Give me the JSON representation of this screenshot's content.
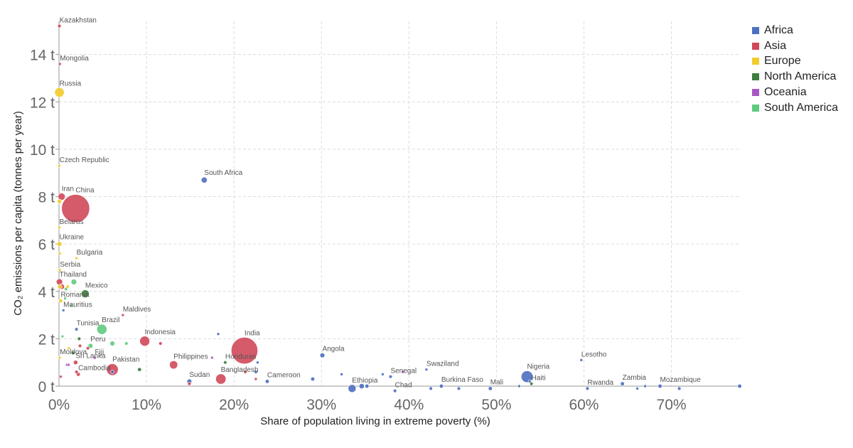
{
  "chart_data": {
    "type": "scatter",
    "xlabel": "Share of population living in extreme poverty (%)",
    "ylabel": "CO₂ emissions per capita (tonnes per year)",
    "xlim": [
      0,
      78
    ],
    "ylim": [
      0,
      15.4
    ],
    "x_ticks": [
      {
        "value": 0,
        "label": "0%"
      },
      {
        "value": 10,
        "label": "10%"
      },
      {
        "value": 20,
        "label": "20%"
      },
      {
        "value": 30,
        "label": "30%"
      },
      {
        "value": 40,
        "label": "40%"
      },
      {
        "value": 50,
        "label": "50%"
      },
      {
        "value": 60,
        "label": "60%"
      },
      {
        "value": 70,
        "label": "70%"
      }
    ],
    "y_ticks": [
      {
        "value": 0,
        "label": "0 t"
      },
      {
        "value": 2,
        "label": "2 t"
      },
      {
        "value": 4,
        "label": "4 t"
      },
      {
        "value": 6,
        "label": "6 t"
      },
      {
        "value": 8,
        "label": "8 t"
      },
      {
        "value": 10,
        "label": "10 t"
      },
      {
        "value": 12,
        "label": "12 t"
      },
      {
        "value": 14,
        "label": "14 t"
      }
    ],
    "grid": true,
    "legend_position": "right",
    "legend": [
      {
        "name": "Africa",
        "color": "#4c6fc0"
      },
      {
        "name": "Asia",
        "color": "#d0485a"
      },
      {
        "name": "Europe",
        "color": "#f2cc2e"
      },
      {
        "name": "North America",
        "color": "#3f7d3c"
      },
      {
        "name": "Oceania",
        "color": "#a856c4"
      },
      {
        "name": "South America",
        "color": "#5fcb7f"
      }
    ],
    "points": [
      {
        "label": "Kazakhstan",
        "region": "Asia",
        "x": 0.05,
        "y": 15.2,
        "size": 0.3
      },
      {
        "label": "Mongolia",
        "region": "Asia",
        "x": 0.1,
        "y": 13.6,
        "size": 0.2
      },
      {
        "label": "Russia",
        "region": "Europe",
        "x": 0.05,
        "y": 12.4,
        "size": 2.3
      },
      {
        "label": "Czech Republic",
        "region": "Europe",
        "x": 0.05,
        "y": 9.3,
        "size": 0.2
      },
      {
        "label": "South Africa",
        "region": "Africa",
        "x": 16.6,
        "y": 8.7,
        "size": 0.9
      },
      {
        "label": "Iran",
        "region": "Asia",
        "x": 0.3,
        "y": 8.0,
        "size": 1.3
      },
      {
        "label": "China",
        "region": "Asia",
        "x": 1.9,
        "y": 7.5,
        "size": 20
      },
      {
        "label": "",
        "region": "Europe",
        "x": 0.05,
        "y": 7.8,
        "size": 0.5
      },
      {
        "label": "Belarus",
        "region": "Europe",
        "x": 0.05,
        "y": 6.7,
        "size": 0.2
      },
      {
        "label": "Ukraine",
        "region": "Europe",
        "x": 0.05,
        "y": 6.0,
        "size": 0.6
      },
      {
        "label": "",
        "region": "Europe",
        "x": 0.1,
        "y": 5.6,
        "size": 0.2
      },
      {
        "label": "Bulgaria",
        "region": "Europe",
        "x": 2.0,
        "y": 5.4,
        "size": 0.2
      },
      {
        "label": "Serbia",
        "region": "Europe",
        "x": 0.1,
        "y": 4.9,
        "size": 0.2
      },
      {
        "label": "Thailand",
        "region": "Asia",
        "x": 0.05,
        "y": 4.4,
        "size": 1.0
      },
      {
        "label": "",
        "region": "South America",
        "x": 1.7,
        "y": 4.4,
        "size": 0.8
      },
      {
        "label": "Mexico",
        "region": "North America",
        "x": 3.0,
        "y": 3.9,
        "size": 1.6
      },
      {
        "label": "",
        "region": "Asia",
        "x": 0.3,
        "y": 4.2,
        "size": 0.8
      },
      {
        "label": "",
        "region": "Europe",
        "x": 0.1,
        "y": 4.2,
        "size": 0.5
      },
      {
        "label": "",
        "region": "South America",
        "x": 0.8,
        "y": 4.1,
        "size": 0.3
      },
      {
        "label": "",
        "region": "Europe",
        "x": 1.0,
        "y": 4.2,
        "size": 0.3
      },
      {
        "label": "Romania",
        "region": "Europe",
        "x": 0.2,
        "y": 3.6,
        "size": 0.4
      },
      {
        "label": "",
        "region": "South America",
        "x": 0.7,
        "y": 3.7,
        "size": 0.2
      },
      {
        "label": "",
        "region": "South America",
        "x": 1.4,
        "y": 3.4,
        "size": 0.2
      },
      {
        "label": "Mauritius",
        "region": "Africa",
        "x": 0.5,
        "y": 3.2,
        "size": 0.2
      },
      {
        "label": "Maldives",
        "region": "Asia",
        "x": 7.3,
        "y": 3.0,
        "size": 0.2
      },
      {
        "label": "Brazil",
        "region": "South America",
        "x": 4.9,
        "y": 2.4,
        "size": 2.6
      },
      {
        "label": "Tunisia",
        "region": "Africa",
        "x": 2.0,
        "y": 2.4,
        "size": 0.3
      },
      {
        "label": "",
        "region": "Africa",
        "x": 18.2,
        "y": 2.2,
        "size": 0.1
      },
      {
        "label": "",
        "region": "South America",
        "x": 0.4,
        "y": 2.1,
        "size": 0.2
      },
      {
        "label": "Indonesia",
        "region": "Asia",
        "x": 9.8,
        "y": 1.9,
        "size": 2.5
      },
      {
        "label": "India",
        "region": "Asia",
        "x": 21.2,
        "y": 1.5,
        "size": 18
      },
      {
        "label": "Peru",
        "region": "South America",
        "x": 3.6,
        "y": 1.7,
        "size": 0.6
      },
      {
        "label": "",
        "region": "South America",
        "x": 6.1,
        "y": 1.8,
        "size": 0.6
      },
      {
        "label": "",
        "region": "South America",
        "x": 7.7,
        "y": 1.8,
        "size": 0.3
      },
      {
        "label": "",
        "region": "North America",
        "x": 2.3,
        "y": 2.0,
        "size": 0.3
      },
      {
        "label": "",
        "region": "Asia",
        "x": 11.6,
        "y": 1.8,
        "size": 0.3
      },
      {
        "label": "",
        "region": "Asia",
        "x": 2.4,
        "y": 1.7,
        "size": 0.3
      },
      {
        "label": "",
        "region": "Asia",
        "x": 3.3,
        "y": 1.6,
        "size": 0.3
      },
      {
        "label": "",
        "region": "Europe",
        "x": 1.1,
        "y": 1.6,
        "size": 0.2
      },
      {
        "label": "",
        "region": "North America",
        "x": 1.6,
        "y": 1.4,
        "size": 0.3
      },
      {
        "label": "Angola",
        "region": "Africa",
        "x": 30.1,
        "y": 1.3,
        "size": 0.6
      },
      {
        "label": "Moldova",
        "region": "Europe",
        "x": 0.1,
        "y": 1.2,
        "size": 0.2
      },
      {
        "label": "Fiji",
        "region": "Oceania",
        "x": 4.1,
        "y": 1.2,
        "size": 0.2
      },
      {
        "label": "",
        "region": "Oceania",
        "x": 17.5,
        "y": 1.2,
        "size": 0.2
      },
      {
        "label": "Honduras",
        "region": "North America",
        "x": 19.0,
        "y": 1.0,
        "size": 0.3
      },
      {
        "label": "",
        "region": "Africa",
        "x": 22.7,
        "y": 1.0,
        "size": 0.2
      },
      {
        "label": "Sri Lanka",
        "region": "Asia",
        "x": 1.9,
        "y": 1.0,
        "size": 0.5
      },
      {
        "label": "",
        "region": "Oceania",
        "x": 0.9,
        "y": 0.9,
        "size": 0.2
      },
      {
        "label": "",
        "region": "Oceania",
        "x": 1.1,
        "y": 0.9,
        "size": 0.2
      },
      {
        "label": "Pakistan",
        "region": "Asia",
        "x": 6.1,
        "y": 0.7,
        "size": 3.5
      },
      {
        "label": "",
        "region": "Africa",
        "x": 6.1,
        "y": 0.6,
        "size": 0.3
      },
      {
        "label": "",
        "region": "North America",
        "x": 9.2,
        "y": 0.7,
        "size": 0.4
      },
      {
        "label": "Philippines",
        "region": "Asia",
        "x": 13.1,
        "y": 0.9,
        "size": 1.7
      },
      {
        "label": "Cambodia",
        "region": "Asia",
        "x": 2.2,
        "y": 0.5,
        "size": 0.4
      },
      {
        "label": "",
        "region": "Asia",
        "x": 2.0,
        "y": 0.6,
        "size": 0.3
      },
      {
        "label": "",
        "region": "Asia",
        "x": 0.2,
        "y": 0.4,
        "size": 0.2
      },
      {
        "label": "Bangladesh",
        "region": "Asia",
        "x": 18.5,
        "y": 0.3,
        "size": 2.7
      },
      {
        "label": "",
        "region": "Asia",
        "x": 21.3,
        "y": 0.6,
        "size": 0.3
      },
      {
        "label": "",
        "region": "Africa",
        "x": 22.5,
        "y": 0.6,
        "size": 0.3
      },
      {
        "label": "Sudan",
        "region": "Africa",
        "x": 14.9,
        "y": 0.2,
        "size": 0.6
      },
      {
        "label": "",
        "region": "Asia",
        "x": 14.9,
        "y": 0.1,
        "size": 0.3
      },
      {
        "label": "",
        "region": "Asia",
        "x": 22.5,
        "y": 0.3,
        "size": 0.2
      },
      {
        "label": "Cameroon",
        "region": "Africa",
        "x": 23.8,
        "y": 0.2,
        "size": 0.4
      },
      {
        "label": "",
        "region": "Africa",
        "x": 29.0,
        "y": 0.3,
        "size": 0.4
      },
      {
        "label": "",
        "region": "Africa",
        "x": 32.3,
        "y": 0.5,
        "size": 0.2
      },
      {
        "label": "Ethiopia",
        "region": "Africa",
        "x": 33.5,
        "y": -0.1,
        "size": 1.6
      },
      {
        "label": "",
        "region": "Africa",
        "x": 34.6,
        "y": 0.0,
        "size": 0.7
      },
      {
        "label": "",
        "region": "Africa",
        "x": 35.2,
        "y": 0.0,
        "size": 0.4
      },
      {
        "label": "",
        "region": "Africa",
        "x": 37.0,
        "y": 0.5,
        "size": 0.2
      },
      {
        "label": "Senegal",
        "region": "Africa",
        "x": 37.9,
        "y": 0.4,
        "size": 0.3
      },
      {
        "label": "",
        "region": "Oceania",
        "x": 39.3,
        "y": 0.6,
        "size": 0.2
      },
      {
        "label": "Chad",
        "region": "Africa",
        "x": 38.4,
        "y": -0.2,
        "size": 0.3
      },
      {
        "label": "Swaziland",
        "region": "Africa",
        "x": 42.0,
        "y": 0.7,
        "size": 0.1
      },
      {
        "label": "",
        "region": "Africa",
        "x": 42.5,
        "y": -0.1,
        "size": 0.3
      },
      {
        "label": "Burkina Faso",
        "region": "Africa",
        "x": 43.7,
        "y": 0.0,
        "size": 0.4
      },
      {
        "label": "",
        "region": "Africa",
        "x": 45.7,
        "y": -0.1,
        "size": 0.3
      },
      {
        "label": "Mali",
        "region": "Africa",
        "x": 49.3,
        "y": -0.1,
        "size": 0.4
      },
      {
        "label": "",
        "region": "Africa",
        "x": 52.6,
        "y": 0.0,
        "size": 0.2
      },
      {
        "label": "Nigeria",
        "region": "Africa",
        "x": 53.5,
        "y": 0.4,
        "size": 3.5
      },
      {
        "label": "Haiti",
        "region": "North America",
        "x": 54.0,
        "y": 0.1,
        "size": 0.3
      },
      {
        "label": "",
        "region": "Africa",
        "x": 53.8,
        "y": 0.2,
        "size": 0.2
      },
      {
        "label": "Lesotho",
        "region": "Africa",
        "x": 59.7,
        "y": 1.1,
        "size": 0.1
      },
      {
        "label": "Rwanda",
        "region": "Africa",
        "x": 60.4,
        "y": -0.1,
        "size": 0.3
      },
      {
        "label": "Zambia",
        "region": "Africa",
        "x": 64.4,
        "y": 0.1,
        "size": 0.4
      },
      {
        "label": "",
        "region": "Africa",
        "x": 66.1,
        "y": -0.1,
        "size": 0.2
      },
      {
        "label": "",
        "region": "Africa",
        "x": 67.0,
        "y": 0.0,
        "size": 0.2
      },
      {
        "label": "Mozambique",
        "region": "Africa",
        "x": 68.7,
        "y": 0.0,
        "size": 0.4
      },
      {
        "label": "",
        "region": "Africa",
        "x": 70.9,
        "y": -0.1,
        "size": 0.3
      },
      {
        "label": "",
        "region": "Africa",
        "x": 77.8,
        "y": 0.0,
        "size": 0.4
      }
    ]
  }
}
